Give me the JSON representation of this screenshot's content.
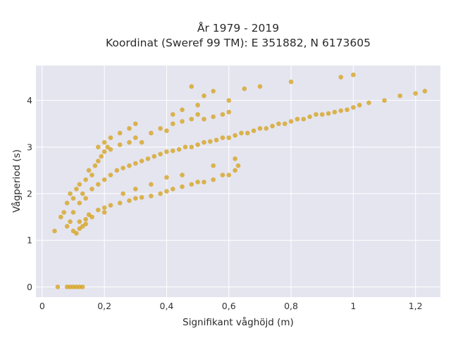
{
  "chart_data": {
    "type": "scatter",
    "title_line1": "År 1979 - 2019",
    "title_line2": "Koordinat (Sweref 99 TM): E 351882, N 6173605",
    "xlabel": "Signifikant våghöjd (m)",
    "ylabel": "Vågperiod (s)",
    "xlim": [
      -0.02,
      1.28
    ],
    "ylim": [
      -0.22,
      4.75
    ],
    "x_ticks": [
      {
        "value": 0,
        "label": "0"
      },
      {
        "value": 0.2,
        "label": "0,2"
      },
      {
        "value": 0.4,
        "label": "0,4"
      },
      {
        "value": 0.6,
        "label": "0,6"
      },
      {
        "value": 0.8,
        "label": "0,8"
      },
      {
        "value": 1.0,
        "label": "1"
      },
      {
        "value": 1.2,
        "label": "1,2"
      }
    ],
    "y_ticks": [
      {
        "value": 0,
        "label": "0"
      },
      {
        "value": 1,
        "label": "1"
      },
      {
        "value": 2,
        "label": "2"
      },
      {
        "value": 3,
        "label": "3"
      },
      {
        "value": 4,
        "label": "4"
      }
    ],
    "grid": true,
    "background_color": "#e5e5f0",
    "marker_color": "#d4a017",
    "points": [
      [
        0.05,
        0.0
      ],
      [
        0.08,
        0.0
      ],
      [
        0.09,
        0.0
      ],
      [
        0.1,
        0.0
      ],
      [
        0.11,
        0.0
      ],
      [
        0.12,
        0.0
      ],
      [
        0.13,
        0.0
      ],
      [
        0.04,
        1.2
      ],
      [
        0.06,
        1.5
      ],
      [
        0.07,
        1.6
      ],
      [
        0.08,
        1.3
      ],
      [
        0.09,
        1.4
      ],
      [
        0.1,
        1.2
      ],
      [
        0.11,
        1.15
      ],
      [
        0.12,
        1.25
      ],
      [
        0.13,
        1.3
      ],
      [
        0.14,
        1.35
      ],
      [
        0.08,
        1.8
      ],
      [
        0.09,
        2.0
      ],
      [
        0.1,
        1.9
      ],
      [
        0.11,
        2.1
      ],
      [
        0.12,
        2.2
      ],
      [
        0.13,
        2.0
      ],
      [
        0.14,
        2.3
      ],
      [
        0.15,
        2.5
      ],
      [
        0.16,
        2.4
      ],
      [
        0.17,
        2.6
      ],
      [
        0.18,
        2.7
      ],
      [
        0.19,
        2.8
      ],
      [
        0.2,
        2.9
      ],
      [
        0.21,
        3.0
      ],
      [
        0.22,
        2.95
      ],
      [
        0.25,
        3.05
      ],
      [
        0.28,
        3.1
      ],
      [
        0.3,
        3.2
      ],
      [
        0.32,
        3.1
      ],
      [
        0.35,
        3.3
      ],
      [
        0.38,
        3.4
      ],
      [
        0.4,
        3.35
      ],
      [
        0.42,
        3.5
      ],
      [
        0.45,
        3.55
      ],
      [
        0.48,
        3.6
      ],
      [
        0.5,
        3.7
      ],
      [
        0.52,
        3.6
      ],
      [
        0.55,
        3.65
      ],
      [
        0.58,
        3.7
      ],
      [
        0.6,
        3.75
      ],
      [
        0.15,
        1.55
      ],
      [
        0.18,
        1.65
      ],
      [
        0.2,
        1.7
      ],
      [
        0.22,
        1.75
      ],
      [
        0.25,
        1.8
      ],
      [
        0.28,
        1.85
      ],
      [
        0.3,
        1.9
      ],
      [
        0.32,
        1.92
      ],
      [
        0.35,
        1.95
      ],
      [
        0.38,
        2.0
      ],
      [
        0.4,
        2.05
      ],
      [
        0.42,
        2.1
      ],
      [
        0.45,
        2.15
      ],
      [
        0.48,
        2.2
      ],
      [
        0.5,
        2.25
      ],
      [
        0.52,
        2.25
      ],
      [
        0.55,
        2.3
      ],
      [
        0.58,
        2.4
      ],
      [
        0.6,
        2.4
      ],
      [
        0.62,
        2.5
      ],
      [
        0.1,
        1.6
      ],
      [
        0.12,
        1.8
      ],
      [
        0.14,
        1.9
      ],
      [
        0.16,
        2.1
      ],
      [
        0.18,
        2.2
      ],
      [
        0.2,
        2.3
      ],
      [
        0.22,
        2.4
      ],
      [
        0.24,
        2.5
      ],
      [
        0.26,
        2.55
      ],
      [
        0.28,
        2.6
      ],
      [
        0.3,
        2.65
      ],
      [
        0.32,
        2.7
      ],
      [
        0.34,
        2.75
      ],
      [
        0.36,
        2.8
      ],
      [
        0.38,
        2.85
      ],
      [
        0.4,
        2.9
      ],
      [
        0.42,
        2.92
      ],
      [
        0.44,
        2.95
      ],
      [
        0.46,
        3.0
      ],
      [
        0.48,
        3.0
      ],
      [
        0.5,
        3.05
      ],
      [
        0.52,
        3.1
      ],
      [
        0.54,
        3.12
      ],
      [
        0.56,
        3.15
      ],
      [
        0.58,
        3.2
      ],
      [
        0.6,
        3.2
      ],
      [
        0.62,
        3.25
      ],
      [
        0.64,
        3.3
      ],
      [
        0.66,
        3.3
      ],
      [
        0.68,
        3.35
      ],
      [
        0.7,
        3.4
      ],
      [
        0.72,
        3.4
      ],
      [
        0.74,
        3.45
      ],
      [
        0.76,
        3.5
      ],
      [
        0.78,
        3.5
      ],
      [
        0.8,
        3.55
      ],
      [
        0.82,
        3.6
      ],
      [
        0.84,
        3.6
      ],
      [
        0.86,
        3.65
      ],
      [
        0.88,
        3.7
      ],
      [
        0.9,
        3.7
      ],
      [
        0.92,
        3.72
      ],
      [
        0.94,
        3.75
      ],
      [
        0.96,
        3.78
      ],
      [
        0.98,
        3.8
      ],
      [
        1.0,
        3.85
      ],
      [
        1.02,
        3.9
      ],
      [
        1.05,
        3.95
      ],
      [
        1.1,
        4.0
      ],
      [
        1.15,
        4.1
      ],
      [
        1.2,
        4.15
      ],
      [
        1.23,
        4.2
      ],
      [
        1.0,
        4.55
      ],
      [
        0.96,
        4.5
      ],
      [
        0.8,
        4.4
      ],
      [
        0.7,
        4.3
      ],
      [
        0.65,
        4.25
      ],
      [
        0.55,
        4.2
      ],
      [
        0.48,
        4.3
      ],
      [
        0.52,
        4.1
      ],
      [
        0.3,
        3.5
      ],
      [
        0.28,
        3.4
      ],
      [
        0.25,
        3.3
      ],
      [
        0.22,
        3.2
      ],
      [
        0.2,
        3.1
      ],
      [
        0.18,
        3.0
      ],
      [
        0.42,
        3.7
      ],
      [
        0.45,
        3.8
      ],
      [
        0.5,
        3.9
      ],
      [
        0.6,
        4.0
      ],
      [
        0.62,
        2.75
      ],
      [
        0.63,
        2.6
      ],
      [
        0.35,
        2.2
      ],
      [
        0.3,
        2.1
      ],
      [
        0.26,
        2.0
      ],
      [
        0.45,
        2.4
      ],
      [
        0.4,
        2.35
      ],
      [
        0.55,
        2.6
      ],
      [
        0.16,
        1.5
      ],
      [
        0.14,
        1.45
      ],
      [
        0.12,
        1.4
      ],
      [
        0.2,
        1.6
      ]
    ]
  }
}
